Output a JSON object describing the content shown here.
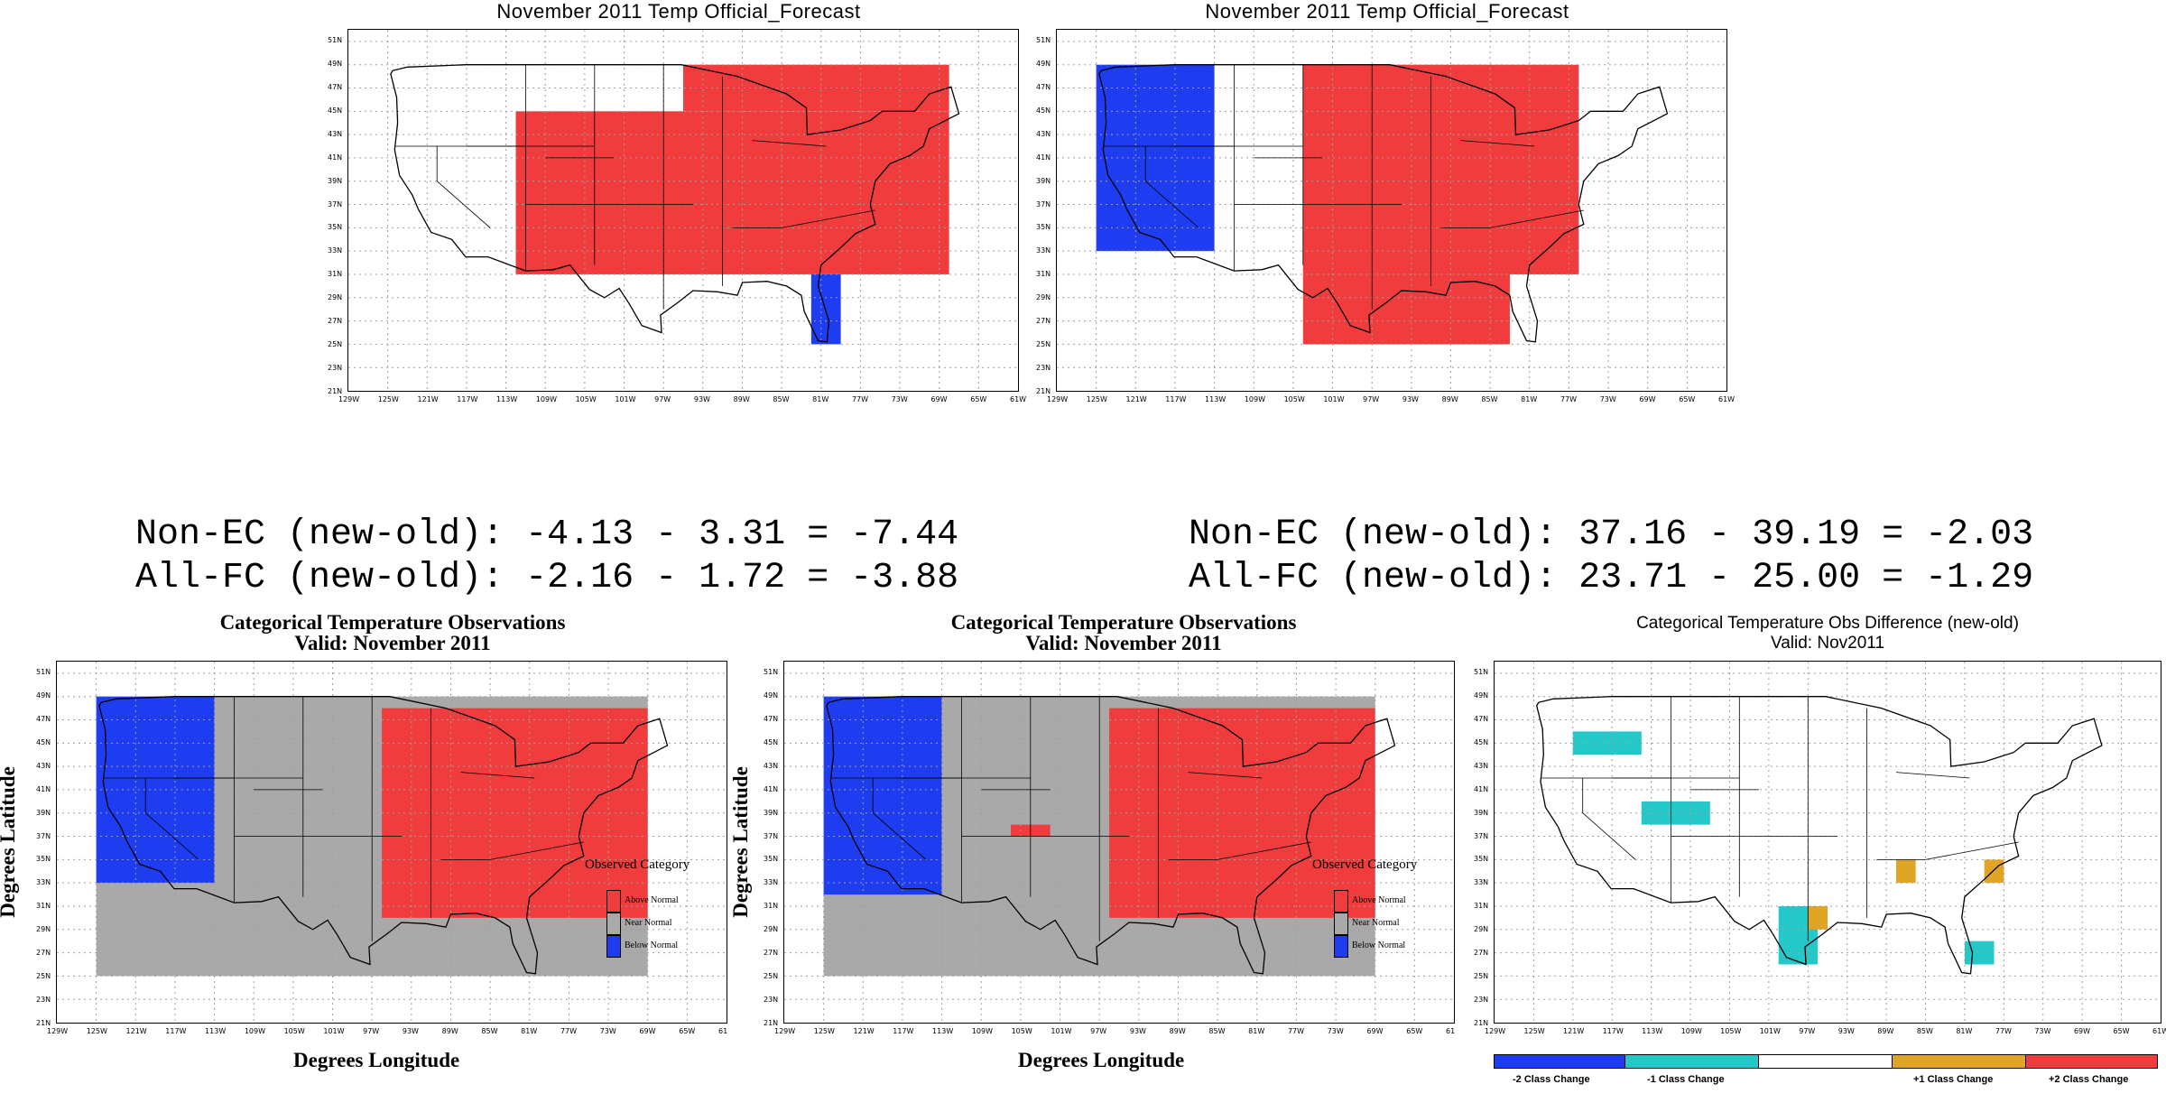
{
  "colors": {
    "above": "#f03c3c",
    "below": "#1e3cf0",
    "near": "#a9a9a9",
    "minus1": "#25c8c8",
    "plus1": "#e1a525",
    "grid": "#a0a0a0"
  },
  "stats": {
    "left": {
      "line1": "Non-EC (new-old): -4.13 - 3.31 = -7.44",
      "line2": "All-FC (new-old): -2.16 - 1.72 = -3.88"
    },
    "right": {
      "line1": "Non-EC (new-old): 37.16 - 39.19 = -2.03",
      "line2": "All-FC (new-old): 23.71 - 25.00 = -1.29"
    }
  },
  "axis_labels": {
    "x": "Degrees Longitude",
    "y": "Degrees Latitude"
  },
  "ticks": {
    "lat": [
      "21N",
      "23N",
      "25N",
      "27N",
      "29N",
      "31N",
      "33N",
      "35N",
      "37N",
      "39N",
      "41N",
      "43N",
      "45N",
      "47N",
      "49N",
      "51N"
    ],
    "lon": [
      "129W",
      "125W",
      "121W",
      "117W",
      "113W",
      "109W",
      "105W",
      "101W",
      "97W",
      "93W",
      "89W",
      "85W",
      "81W",
      "77W",
      "73W",
      "69W",
      "65W",
      "61W"
    ],
    "lon_short_last": "61"
  },
  "legend": {
    "title": "Observed Category",
    "items": [
      {
        "label": "Above Normal",
        "color_key": "above"
      },
      {
        "label": "Near Normal",
        "color_key": "near"
      },
      {
        "label": "Below Normal",
        "color_key": "below"
      }
    ]
  },
  "diff_legend": {
    "items": [
      {
        "label": "-2 Class Change",
        "color_key": "below"
      },
      {
        "label": "-1 Class Change",
        "color_key": "minus1"
      },
      {
        "label": "",
        "color_key": "white"
      },
      {
        "label": "+1 Class Change",
        "color_key": "plus1"
      },
      {
        "label": "+2 Class Change",
        "color_key": "above"
      }
    ]
  },
  "maps": [
    {
      "id": "forecast-old",
      "title_lines": [
        "November 2011 Temp Official_Forecast"
      ],
      "title_style": "sans",
      "cells": [
        {
          "cat": "above",
          "lon": [
            -112,
            -68
          ],
          "lat": [
            31,
            45
          ]
        },
        {
          "cat": "above",
          "lon": [
            -95,
            -68
          ],
          "lat": [
            45,
            49
          ]
        },
        {
          "cat": "below",
          "lon": [
            -82,
            -79
          ],
          "lat": [
            25,
            31
          ]
        }
      ]
    },
    {
      "id": "forecast-new",
      "title_lines": [
        "November 2011 Temp Official_Forecast"
      ],
      "title_style": "sans",
      "cells": [
        {
          "cat": "below",
          "lon": [
            -125,
            -113
          ],
          "lat": [
            33,
            49
          ]
        },
        {
          "cat": "above",
          "lon": [
            -104,
            -76
          ],
          "lat": [
            31,
            49
          ]
        },
        {
          "cat": "above",
          "lon": [
            -104,
            -83
          ],
          "lat": [
            25,
            31
          ]
        }
      ]
    },
    {
      "id": "observed-old",
      "title_lines": [
        "Categorical Temperature Observations",
        "Valid: November 2011"
      ],
      "title_style": "serif",
      "cells": [
        {
          "cat": "near",
          "lon": [
            -125,
            -69
          ],
          "lat": [
            25,
            49
          ]
        },
        {
          "cat": "below",
          "lon": [
            -125,
            -113
          ],
          "lat": [
            33,
            49
          ]
        },
        {
          "cat": "above",
          "lon": [
            -96,
            -69
          ],
          "lat": [
            30,
            48
          ]
        }
      ]
    },
    {
      "id": "observed-new",
      "title_lines": [
        "Categorical Temperature Observations",
        "Valid: November 2011"
      ],
      "title_style": "serif",
      "cells": [
        {
          "cat": "near",
          "lon": [
            -125,
            -69
          ],
          "lat": [
            25,
            49
          ]
        },
        {
          "cat": "below",
          "lon": [
            -125,
            -113
          ],
          "lat": [
            32,
            49
          ]
        },
        {
          "cat": "above",
          "lon": [
            -96,
            -69
          ],
          "lat": [
            30,
            48
          ]
        },
        {
          "cat": "above",
          "lon": [
            -106,
            -102
          ],
          "lat": [
            37,
            38
          ]
        }
      ]
    },
    {
      "id": "difference",
      "title_lines": [
        "Categorical Temperature Obs Difference (new-old)",
        "Valid: Nov2011"
      ],
      "title_style": "small",
      "cells": [
        {
          "cat": "minus1",
          "lon": [
            -121,
            -114
          ],
          "lat": [
            44,
            46
          ]
        },
        {
          "cat": "minus1",
          "lon": [
            -114,
            -107
          ],
          "lat": [
            38,
            40
          ]
        },
        {
          "cat": "minus1",
          "lon": [
            -100,
            -96
          ],
          "lat": [
            26,
            31
          ]
        },
        {
          "cat": "plus1",
          "lon": [
            -97,
            -95
          ],
          "lat": [
            29,
            31
          ]
        },
        {
          "cat": "plus1",
          "lon": [
            -88,
            -86
          ],
          "lat": [
            33,
            35
          ]
        },
        {
          "cat": "plus1",
          "lon": [
            -79,
            -77
          ],
          "lat": [
            33,
            35
          ]
        },
        {
          "cat": "minus1",
          "lon": [
            -81,
            -78
          ],
          "lat": [
            26,
            28
          ]
        }
      ]
    }
  ]
}
